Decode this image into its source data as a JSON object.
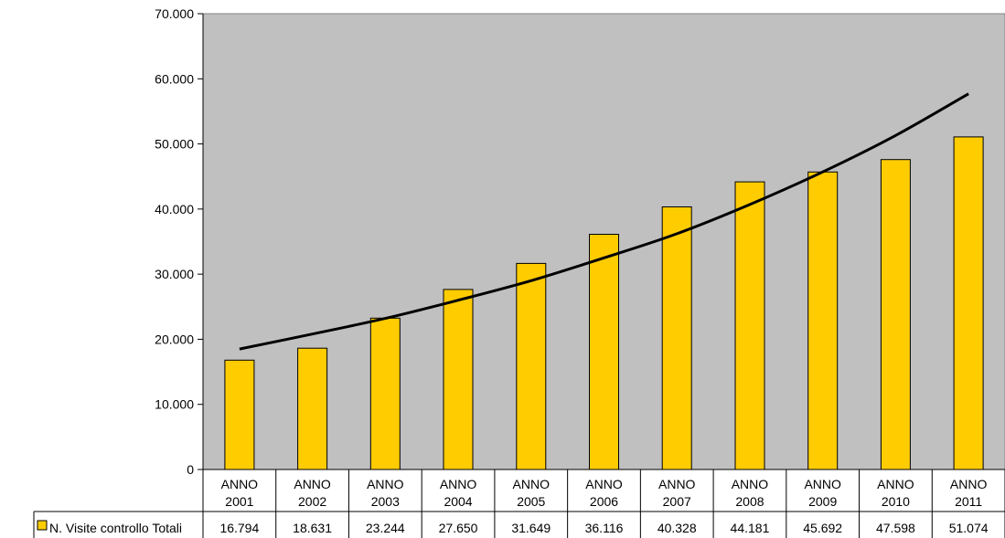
{
  "chart_data": {
    "type": "bar",
    "categories": [
      [
        "ANNO",
        "2001"
      ],
      [
        "ANNO",
        "2002"
      ],
      [
        "ANNO",
        "2003"
      ],
      [
        "ANNO",
        "2004"
      ],
      [
        "ANNO",
        "2005"
      ],
      [
        "ANNO",
        "2006"
      ],
      [
        "ANNO",
        "2007"
      ],
      [
        "ANNO",
        "2008"
      ],
      [
        "ANNO",
        "2009"
      ],
      [
        "ANNO",
        "2010"
      ],
      [
        "ANNO",
        "2011"
      ]
    ],
    "series": [
      {
        "name": "N. Visite controllo Totali",
        "values": [
          16794,
          18631,
          23244,
          27650,
          31649,
          36116,
          40328,
          44181,
          45692,
          47598,
          51074
        ],
        "value_labels": [
          "16.794",
          "18.631",
          "23.244",
          "27.650",
          "31.649",
          "36.116",
          "40.328",
          "44.181",
          "45.692",
          "47.598",
          "51.074"
        ],
        "color": "#FFCC00"
      }
    ],
    "trendline": {
      "type": "exponential",
      "values": [
        18500,
        20800,
        23200,
        26000,
        29000,
        32500,
        36200,
        40700,
        45700,
        51300,
        57700
      ],
      "color": "#000000"
    },
    "ylim": [
      0,
      70000
    ],
    "yticks": [
      0,
      10000,
      20000,
      30000,
      40000,
      50000,
      60000,
      70000
    ],
    "ytick_labels": [
      "0",
      "10.000",
      "20.000",
      "30.000",
      "40.000",
      "50.000",
      "60.000",
      "70.000"
    ],
    "grid": false,
    "plot_background": "#C0C0C0",
    "data_table": true,
    "legend": "in data table, left of values row"
  }
}
